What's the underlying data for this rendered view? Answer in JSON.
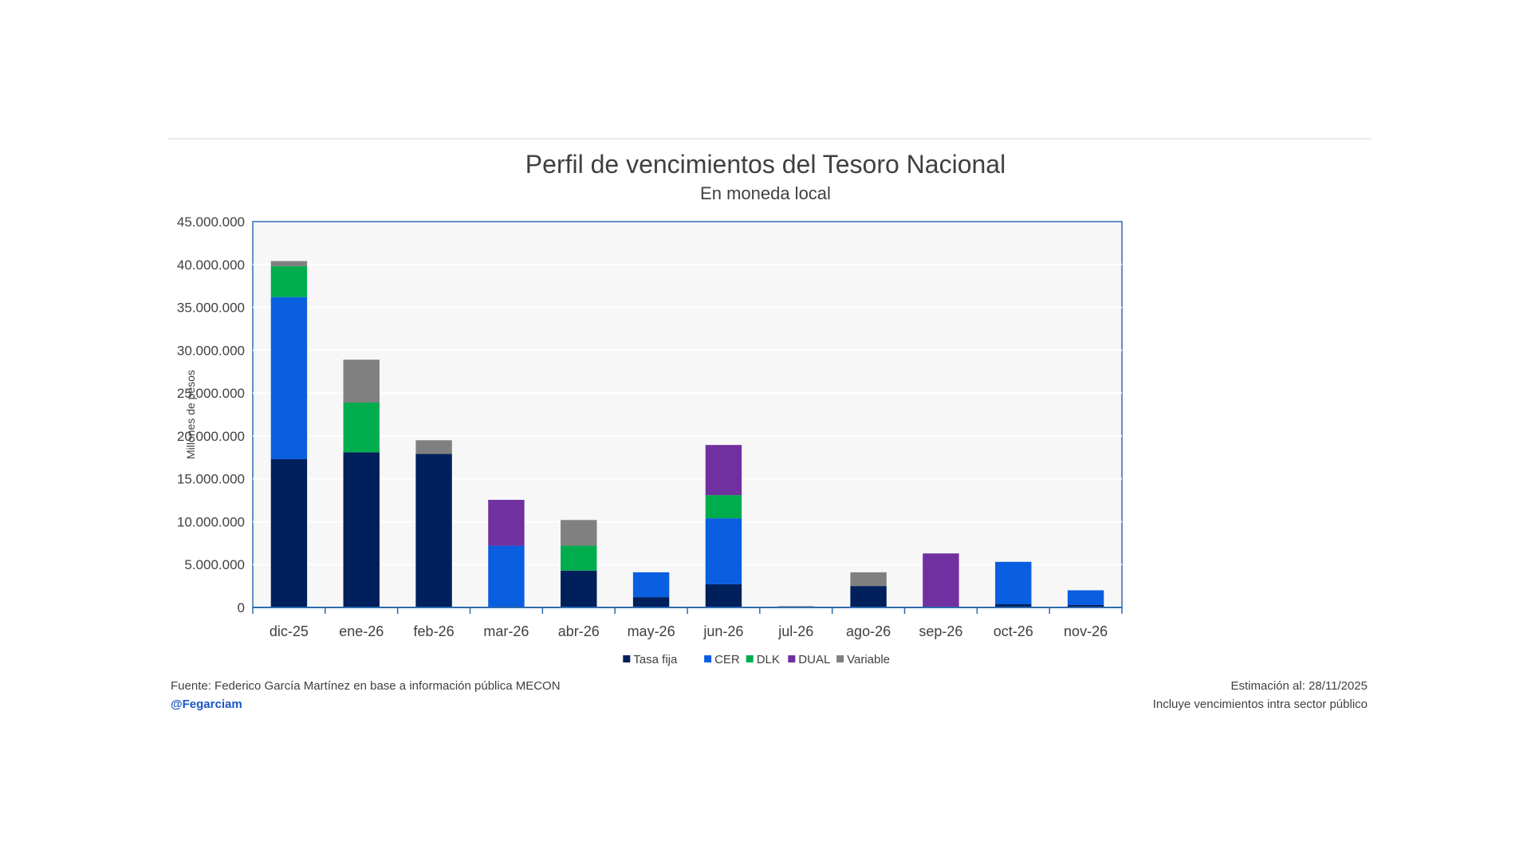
{
  "chart_data": {
    "type": "bar",
    "stacked": true,
    "title": "Perfil de vencimientos del Tesoro Nacional",
    "subtitle": "En moneda local",
    "xlabel": "",
    "ylabel": "Millones de pesos",
    "ylim": [
      0,
      45000000
    ],
    "yticks": [
      0,
      5000000,
      10000000,
      15000000,
      20000000,
      25000000,
      30000000,
      35000000,
      40000000,
      45000000
    ],
    "ytick_labels": [
      "0",
      "5.000.000",
      "10.000.000",
      "15.000.000",
      "20.000.000",
      "25.000.000",
      "30.000.000",
      "35.000.000",
      "40.000.000",
      "45.000.000"
    ],
    "grid": true,
    "legend_position": "bottom",
    "categories": [
      "dic-25",
      "ene-26",
      "feb-26",
      "mar-26",
      "abr-26",
      "may-26",
      "jun-26",
      "jul-26",
      "ago-26",
      "sep-26",
      "oct-26",
      "nov-26"
    ],
    "series": [
      {
        "name": "Tasa fija",
        "color": "#00205b",
        "values": [
          17300000,
          18100000,
          17900000,
          0,
          4300000,
          1200000,
          2700000,
          0,
          2500000,
          0,
          370000,
          280000
        ]
      },
      {
        "name": "CER",
        "color": "#0a5ee0",
        "values": [
          18900000,
          0,
          0,
          7200000,
          0,
          2900000,
          7700000,
          0,
          0,
          0,
          4950000,
          1720000
        ]
      },
      {
        "name": "DLK",
        "color": "#00ad4e",
        "values": [
          3600000,
          5800000,
          0,
          0,
          2900000,
          0,
          2700000,
          0,
          0,
          0,
          0,
          0
        ]
      },
      {
        "name": "DUAL",
        "color": "#7030a0",
        "values": [
          0,
          0,
          0,
          5350000,
          0,
          0,
          5850000,
          0,
          0,
          6300000,
          0,
          0
        ]
      },
      {
        "name": "Variable",
        "color": "#808080",
        "values": [
          600000,
          5000000,
          1600000,
          0,
          3000000,
          0,
          0,
          150000,
          1600000,
          0,
          0,
          0
        ]
      }
    ]
  },
  "footer": {
    "source": "Fuente: Federico García Martínez en base a información pública MECON",
    "handle": "@Fegarciam",
    "estimation": "Estimación al: 28/11/2025",
    "note": "Incluye vencimientos intra sector público"
  },
  "colors": {
    "plot_background": "#f7f7f7",
    "axis": "#2e6bb0",
    "handle": "#1a56c4"
  }
}
